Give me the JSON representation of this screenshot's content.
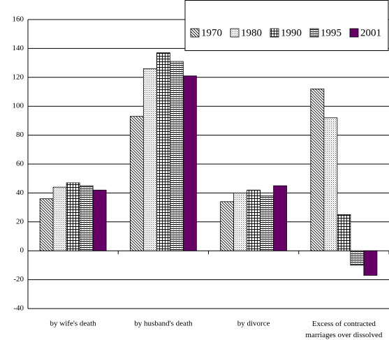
{
  "chart_data": {
    "type": "bar",
    "categories": [
      "by wife's death",
      "by husband's death",
      "by divorce",
      "Excess of contracted marriages over dissolved"
    ],
    "series": [
      {
        "name": "1970",
        "color": "#000000",
        "pattern": "diagonal",
        "values": [
          36,
          93,
          34,
          112
        ]
      },
      {
        "name": "1980",
        "color": "#000000",
        "pattern": "dots",
        "values": [
          44,
          126,
          40,
          92
        ]
      },
      {
        "name": "1990",
        "color": "#000000",
        "pattern": "grid",
        "values": [
          47,
          137,
          42,
          25
        ]
      },
      {
        "name": "1995",
        "color": "#000000",
        "pattern": "hlines",
        "values": [
          45,
          131,
          38,
          -10
        ]
      },
      {
        "name": "2001",
        "color": "#660066",
        "pattern": "solid",
        "values": [
          42,
          121,
          45,
          -17
        ]
      }
    ],
    "ylim": [
      -40,
      160
    ],
    "yticks": [
      -40,
      -20,
      0,
      20,
      40,
      60,
      80,
      100,
      120,
      140,
      160
    ],
    "grid": true,
    "legend": "top-right"
  }
}
